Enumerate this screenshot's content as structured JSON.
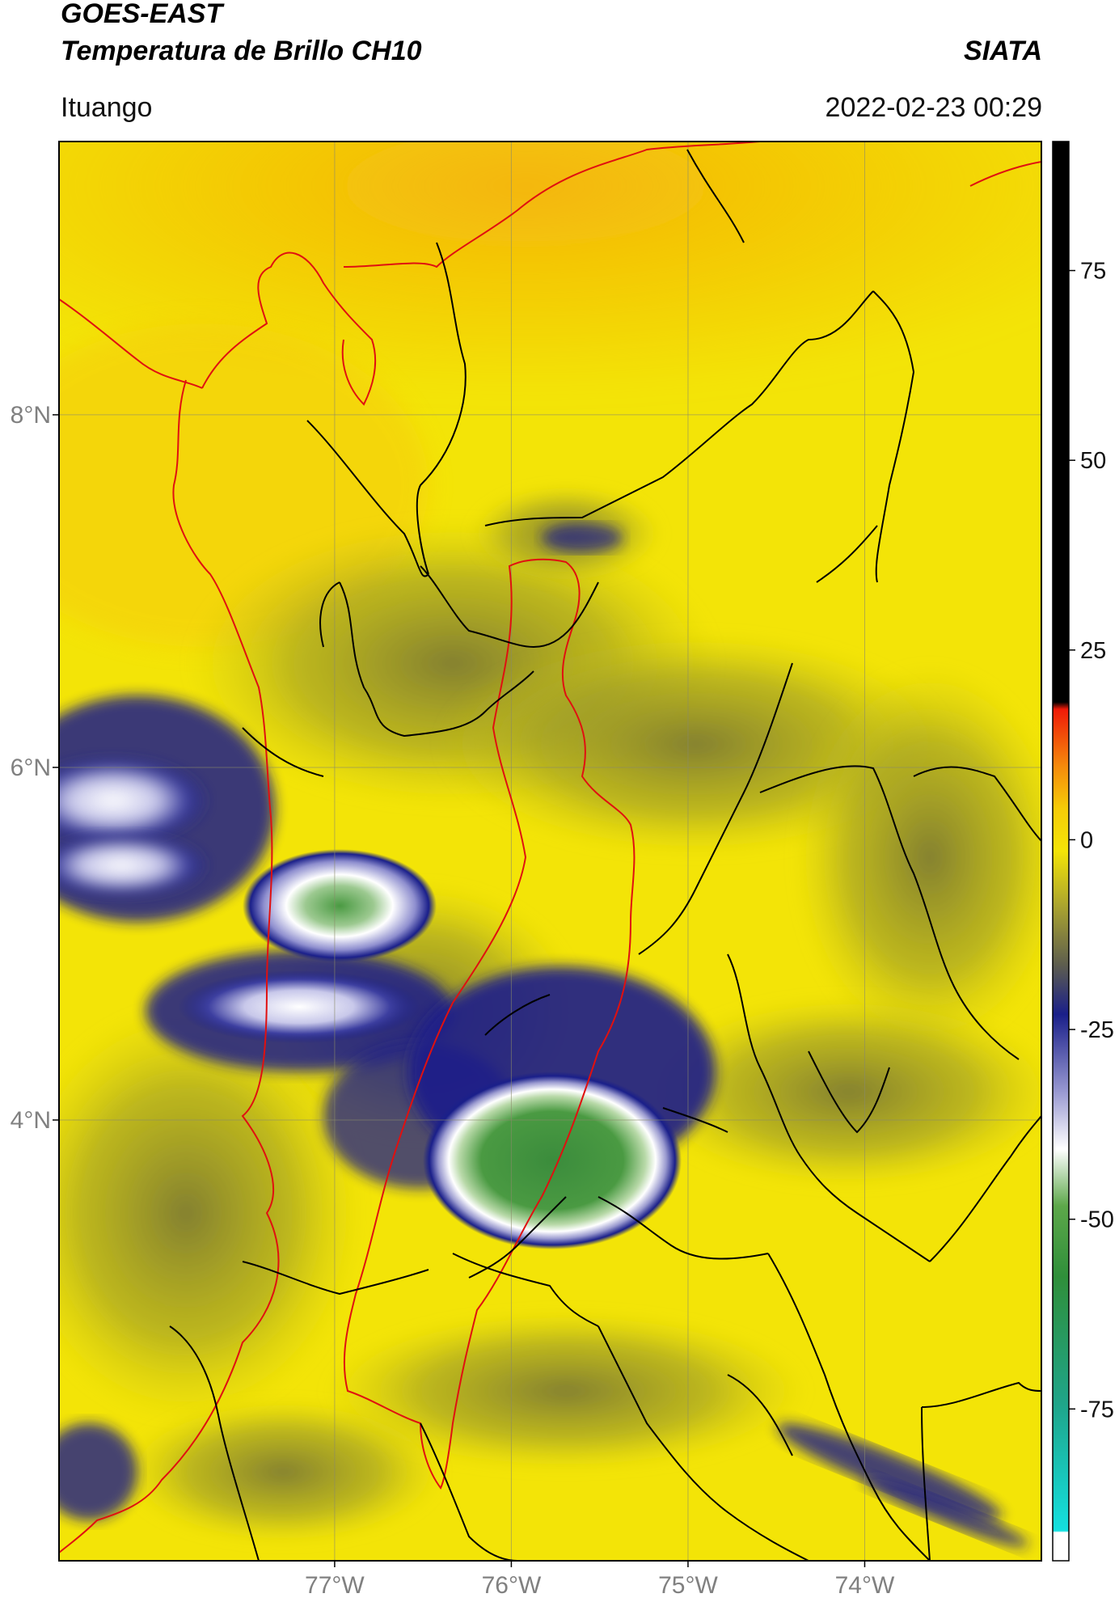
{
  "header": {
    "satellite": "GOES-EAST",
    "product": "Temperatura de Brillo CH10",
    "organization": "SIATA",
    "location": "Ituango",
    "datetime": "2022-02-23 00:29"
  },
  "map": {
    "extent": {
      "lon_min": -78.56,
      "lon_max": -73.0,
      "lat_min": 1.5,
      "lat_max": 9.55
    },
    "lat_ticks": [
      {
        "value": 8,
        "label": "8°N"
      },
      {
        "value": 6,
        "label": "6°N"
      },
      {
        "value": 4,
        "label": "4°N"
      }
    ],
    "lon_ticks": [
      {
        "value": -77,
        "label": "77°W"
      },
      {
        "value": -76,
        "label": "76°W"
      },
      {
        "value": -75,
        "label": "75°W"
      },
      {
        "value": -74,
        "label": "74°W"
      }
    ],
    "background_color": "#f3e407",
    "coastline_color": "#e01010",
    "boundary_color": "#000000",
    "gridline_color": "#8a8a6a"
  },
  "colorbar": {
    "range": [
      -95,
      92
    ],
    "ticks": [
      {
        "value": 75,
        "label": "75"
      },
      {
        "value": 50,
        "label": "50"
      },
      {
        "value": 25,
        "label": "25"
      },
      {
        "value": 0,
        "label": "0"
      },
      {
        "value": -25,
        "label": "-25"
      },
      {
        "value": -50,
        "label": "-50"
      },
      {
        "value": -75,
        "label": "-75"
      }
    ]
  }
}
